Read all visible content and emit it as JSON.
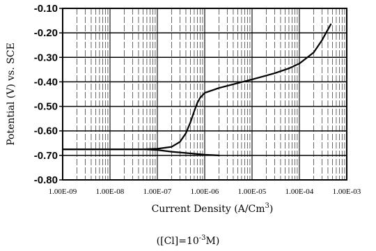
{
  "chart_data": {
    "type": "line",
    "xlabel": "Current Density (A/Cm",
    "xlabel_sup": "3",
    "xlabel_close": ")",
    "ylabel": "Potential (V) vs. SCE",
    "x_scale": "log",
    "xlim": [
      1e-09,
      0.001
    ],
    "ylim": [
      -0.8,
      -0.1
    ],
    "grid": true,
    "x_tick_values": [
      1e-09,
      1e-08,
      1e-07,
      1e-06,
      1e-05,
      0.0001,
      0.001
    ],
    "x_tick_labels": [
      "1.00E-09",
      "1.00E-08",
      "1.00E-07",
      "1.00E-06",
      "1.00E-05",
      "1.00E-04",
      "1.00E-03"
    ],
    "y_tick_values": [
      -0.1,
      -0.2,
      -0.3,
      -0.4,
      -0.5,
      -0.6,
      -0.7,
      -0.8
    ],
    "y_tick_labels": [
      "-0.10",
      "-0.20",
      "-0.30",
      "-0.40",
      "-0.50",
      "-0.60",
      "-0.70",
      "-0.80"
    ],
    "series": [
      {
        "branch": "anodic",
        "points": [
          [
            1e-09,
            -0.675
          ],
          [
            1e-08,
            -0.675
          ],
          [
            5e-08,
            -0.675
          ],
          [
            1e-07,
            -0.673
          ],
          [
            2e-07,
            -0.665
          ],
          [
            3e-07,
            -0.645
          ],
          [
            4e-07,
            -0.61
          ],
          [
            5e-07,
            -0.565
          ],
          [
            6e-07,
            -0.52
          ],
          [
            7e-07,
            -0.485
          ],
          [
            8e-07,
            -0.465
          ],
          [
            1e-06,
            -0.445
          ],
          [
            2e-06,
            -0.425
          ],
          [
            5e-06,
            -0.405
          ],
          [
            1e-05,
            -0.39
          ],
          [
            3e-05,
            -0.365
          ],
          [
            6e-05,
            -0.345
          ],
          [
            0.0001,
            -0.325
          ],
          [
            0.0002,
            -0.28
          ],
          [
            0.0003,
            -0.23
          ],
          [
            0.00046,
            -0.165
          ]
        ]
      },
      {
        "branch": "cathodic",
        "points": [
          [
            1e-09,
            -0.675
          ],
          [
            5e-08,
            -0.675
          ],
          [
            1e-07,
            -0.678
          ],
          [
            2e-07,
            -0.685
          ],
          [
            5e-07,
            -0.692
          ],
          [
            1e-06,
            -0.697
          ],
          [
            2e-06,
            -0.7
          ]
        ]
      }
    ],
    "caption": "([Cl]=10",
    "caption_sup": "-3",
    "caption_close": "M)"
  }
}
